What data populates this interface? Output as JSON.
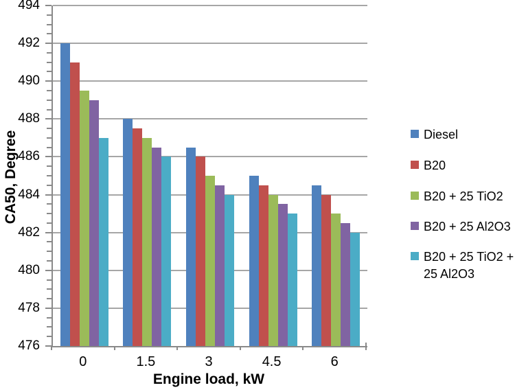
{
  "chart_data": {
    "type": "bar",
    "title": "",
    "xlabel": "Engine load, kW",
    "ylabel": "CA50, Degree",
    "categories": [
      "0",
      "1.5",
      "3",
      "4.5",
      "6"
    ],
    "series": [
      {
        "name": "Diesel",
        "color": "#4F81BD",
        "values": [
          492,
          488,
          486.5,
          485,
          484.5
        ]
      },
      {
        "name": "B20",
        "color": "#C0504D",
        "values": [
          491,
          487.5,
          486,
          484.5,
          484
        ]
      },
      {
        "name": "B20 + 25 TiO2",
        "color": "#9BBB59",
        "values": [
          489.5,
          487,
          485,
          484,
          483
        ]
      },
      {
        "name": "B20 + 25 Al2O3",
        "color": "#8064A2",
        "values": [
          489,
          486.5,
          484.5,
          483.5,
          482.5
        ]
      },
      {
        "name": "B20 + 25 TiO2 + 25 Al2O3",
        "color": "#4BACC6",
        "values": [
          487,
          486,
          484,
          483,
          482
        ]
      }
    ],
    "ylim": [
      476,
      494
    ],
    "ytick_step": 2,
    "yminor_step": 0.5,
    "grid": true,
    "legend_position": "right",
    "colors": {
      "gridline": "#a6a6a6",
      "axis": "#898989",
      "text": "#000000"
    }
  }
}
